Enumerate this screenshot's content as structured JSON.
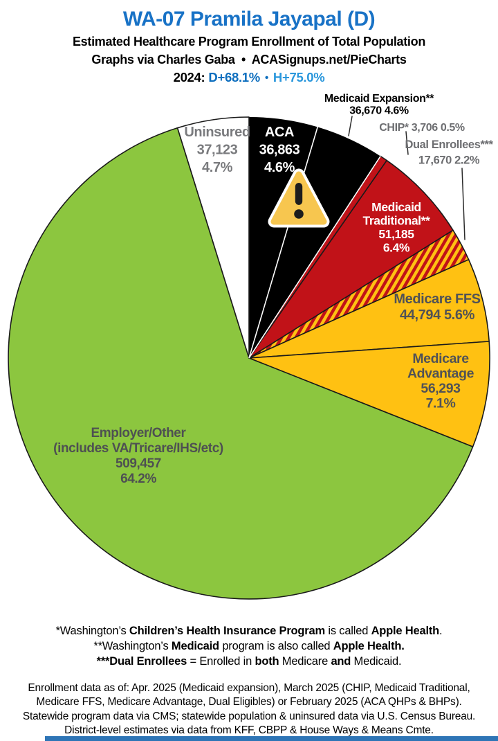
{
  "header": {
    "title": "WA-07 Pramila Jayapal (D)",
    "subtitle": "Estimated Healthcare Program Enrollment of Total Population",
    "credit": "Graphs via Charles Gaba  •  ACASignups.net/PieCharts",
    "partisan": {
      "year_label": "2024:",
      "d_value": "D+68.1%",
      "separator": "•",
      "h_value": "H+75.0%"
    }
  },
  "chart_data": {
    "type": "pie",
    "title": "Estimated Healthcare Program Enrollment of Total Population",
    "start_position": "12-o'clock, clockwise",
    "slices": [
      {
        "id": "aca",
        "label": "ACA",
        "value": 36863,
        "value_display": "36,863",
        "pct": 4.6,
        "pct_display": "4.6%",
        "color": "#000000",
        "label_lines": [
          "ACA",
          "36,863",
          "4.6%"
        ]
      },
      {
        "id": "medicaid-expansion",
        "label": "Medicaid Expansion**",
        "value": 36670,
        "value_display": "36,670",
        "pct": 4.6,
        "pct_display": "4.6%",
        "color": "#000000",
        "label_lines": [
          "Medicaid Expansion**",
          "36,670 4.6%"
        ]
      },
      {
        "id": "chip",
        "label": "CHIP*",
        "value": 3706,
        "value_display": "3,706",
        "pct": 0.5,
        "pct_display": "0.5%",
        "color": "#C11218",
        "label_lines": [
          "CHIP* 3,706 0.5%"
        ]
      },
      {
        "id": "medicaid-traditional",
        "label": "Medicaid Traditional**",
        "value": 51185,
        "value_display": "51,185",
        "pct": 6.4,
        "pct_display": "6.4%",
        "color": "#C11218",
        "label_lines": [
          "Medicaid",
          "Traditional**",
          "51,185",
          "6.4%"
        ]
      },
      {
        "id": "dual-enrollees",
        "label": "Dual Enrollees***",
        "value": 17670,
        "value_display": "17,670",
        "pct": 2.2,
        "pct_display": "2.2%",
        "color": "hatch",
        "label_lines": [
          "Dual Enrollees***",
          "17,670 2.2%"
        ]
      },
      {
        "id": "medicare-ffs",
        "label": "Medicare FFS",
        "value": 44794,
        "value_display": "44,794",
        "pct": 5.6,
        "pct_display": "5.6%",
        "color": "#FFC112",
        "label_lines": [
          "Medicare FFS",
          "44,794 5.6%"
        ]
      },
      {
        "id": "medicare-advantage",
        "label": "Medicare Advantage",
        "value": 56293,
        "value_display": "56,293",
        "pct": 7.1,
        "pct_display": "7.1%",
        "color": "#FFC112",
        "label_lines": [
          "Medicare",
          "Advantage",
          "56,293",
          "7.1%"
        ]
      },
      {
        "id": "employer-other",
        "label": "Employer/Other (includes VA/Tricare/IHS/etc)",
        "value": 509457,
        "value_display": "509,457",
        "pct": 64.2,
        "pct_display": "64.2%",
        "color": "#8CC63F",
        "label_lines": [
          "Employer/Other",
          "(includes VA/Tricare/IHS/etc)",
          "509,457",
          "64.2%"
        ]
      },
      {
        "id": "uninsured",
        "label": "Uninsured",
        "value": 37123,
        "value_display": "37,123",
        "pct": 4.7,
        "pct_display": "4.7%",
        "color": "#FFFFFF",
        "label_lines": [
          "Uninsured",
          "37,123",
          "4.7%"
        ]
      }
    ],
    "hatch": {
      "stripe_color_1": "#C11218",
      "stripe_color_2": "#FFC112"
    },
    "annotations": {
      "warning_icon": "warning-triangle"
    }
  },
  "footnotes": {
    "lines": [
      [
        {
          "t": "*Washington’s ",
          "b": 0
        },
        {
          "t": "Children’s Health Insurance Program",
          "b": 1
        },
        {
          "t": " is called ",
          "b": 0
        },
        {
          "t": "Apple Health",
          "b": 1
        },
        {
          "t": ".",
          "b": 0
        }
      ],
      [
        {
          "t": "**Washington’s ",
          "b": 0
        },
        {
          "t": "Medicaid",
          "b": 1
        },
        {
          "t": " program is also called ",
          "b": 0
        },
        {
          "t": "Apple Health.",
          "b": 1
        }
      ],
      [
        {
          "t": "***Dual Enrollees",
          "b": 1
        },
        {
          "t": " = Enrolled in ",
          "b": 0
        },
        {
          "t": "both",
          "b": 1
        },
        {
          "t": " Medicare ",
          "b": 0
        },
        {
          "t": "and",
          "b": 1
        },
        {
          "t": " Medicaid.",
          "b": 0
        }
      ]
    ]
  },
  "sources": {
    "lines": [
      "Enrollment data as of: Apr. 2025 (Medicaid expansion), March 2025 (CHIP, Medicaid Traditional,",
      "Medicare FFS, Medicare Advantage, Dual Eligibles) or February 2025 (ACA QHPs & BHPs).",
      "Statewide program data via CMS; statewide population & uninsured data via U.S. Census Bureau.",
      "District-level estimates via data from KFF, CBPP & House Ways & Means Cmte."
    ]
  },
  "colors": {
    "title_blue": "#1872C6",
    "d_blue": "#0D6EBE",
    "h_blue": "#2A97DC",
    "pie_red": "#C11218",
    "pie_yellow": "#FFC112",
    "pie_green": "#8CC63F",
    "pie_black": "#000000",
    "pie_white": "#FFFFFF",
    "outline": "#1A1A1A",
    "warning_fill": "#F7C64F",
    "bottom_bar": "#2E75B6"
  }
}
